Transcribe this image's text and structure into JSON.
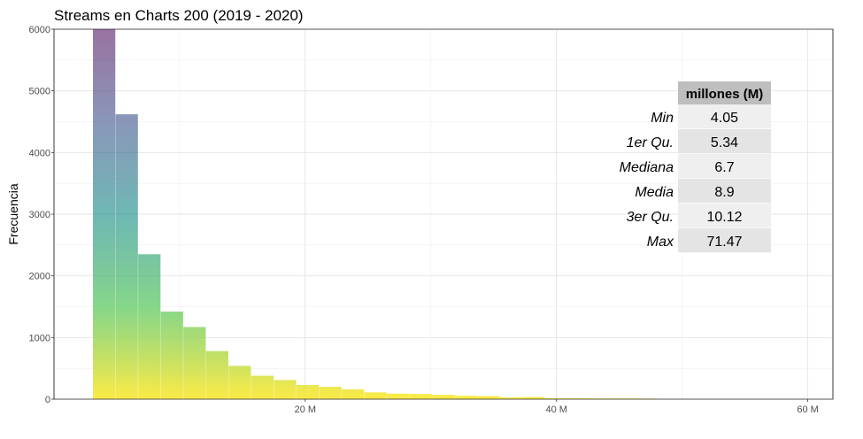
{
  "chart_data": {
    "type": "bar",
    "title": "Streams en Charts 200 (2019 - 2020)",
    "xlabel": "",
    "ylabel": "Frecuencia",
    "xlim": [
      0,
      62
    ],
    "ylim": [
      0,
      6000
    ],
    "x_ticks": [
      {
        "value": 20,
        "label": "20 M"
      },
      {
        "value": 40,
        "label": "40 M"
      },
      {
        "value": 60,
        "label": "60 M"
      }
    ],
    "y_ticks": [
      {
        "value": 0,
        "label": "0"
      },
      {
        "value": 1000,
        "label": "1000"
      },
      {
        "value": 2000,
        "label": "2000"
      },
      {
        "value": 3000,
        "label": "3000"
      },
      {
        "value": 4000,
        "label": "4000"
      },
      {
        "value": 5000,
        "label": "5000"
      },
      {
        "value": 6000,
        "label": "6000"
      }
    ],
    "grid": true,
    "bin_width": 1.8,
    "bins": [
      {
        "x0": 3.1,
        "count": 6000
      },
      {
        "x0": 4.9,
        "count": 4620
      },
      {
        "x0": 6.7,
        "count": 2350
      },
      {
        "x0": 8.5,
        "count": 1420
      },
      {
        "x0": 10.3,
        "count": 1170
      },
      {
        "x0": 12.1,
        "count": 780
      },
      {
        "x0": 13.9,
        "count": 540
      },
      {
        "x0": 15.7,
        "count": 380
      },
      {
        "x0": 17.5,
        "count": 310
      },
      {
        "x0": 19.3,
        "count": 230
      },
      {
        "x0": 21.1,
        "count": 200
      },
      {
        "x0": 22.9,
        "count": 160
      },
      {
        "x0": 24.7,
        "count": 110
      },
      {
        "x0": 26.5,
        "count": 90
      },
      {
        "x0": 28.3,
        "count": 85
      },
      {
        "x0": 30.1,
        "count": 70
      },
      {
        "x0": 31.9,
        "count": 55
      },
      {
        "x0": 33.7,
        "count": 50
      },
      {
        "x0": 35.5,
        "count": 30
      },
      {
        "x0": 37.3,
        "count": 35
      },
      {
        "x0": 39.1,
        "count": 15
      },
      {
        "x0": 40.9,
        "count": 15
      },
      {
        "x0": 42.7,
        "count": 12
      },
      {
        "x0": 44.5,
        "count": 12
      },
      {
        "x0": 46.3,
        "count": 10
      }
    ],
    "gradient_colors": [
      "#fde725",
      "#5ec962",
      "#21918c",
      "#3b528b",
      "#440154"
    ],
    "summary_table": {
      "header": "millones (M)",
      "rows": [
        {
          "label": "Min",
          "value": "4.05"
        },
        {
          "label": "1er Qu.",
          "value": "5.34"
        },
        {
          "label": "Mediana",
          "value": "6.7"
        },
        {
          "label": "Media",
          "value": "8.9"
        },
        {
          "label": "3er Qu.",
          "value": "10.12"
        },
        {
          "label": "Max",
          "value": "71.47"
        }
      ]
    }
  }
}
